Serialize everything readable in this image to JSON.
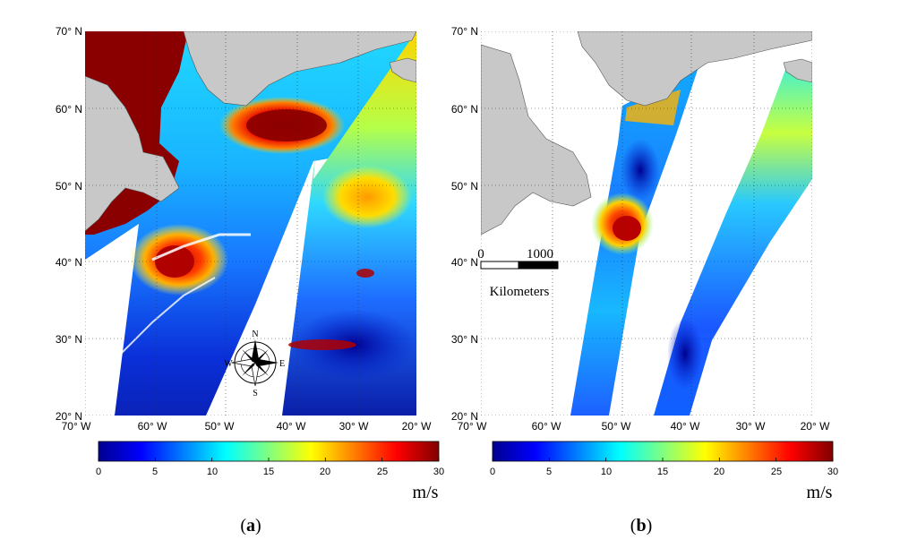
{
  "figure": {
    "panels": [
      {
        "id": "a",
        "label_open": "(",
        "label_letter": "a",
        "label_close": ")",
        "lat_ticks": [
          "70° N",
          "60° N",
          "50° N",
          "40° N",
          "30° N",
          "20° N"
        ],
        "lon_ticks": [
          "70° W",
          "60° W",
          "50° W",
          "40° W",
          "30° W",
          "20° W"
        ],
        "colorbar": {
          "min": 0,
          "max": 30,
          "ticks": [
            "0",
            "5",
            "10",
            "15",
            "20",
            "25",
            "30"
          ],
          "units": "m/s"
        },
        "compass": {
          "N": "N",
          "S": "S",
          "E": "E",
          "W": "W"
        }
      },
      {
        "id": "b",
        "label_open": "(",
        "label_letter": "b",
        "label_close": ")",
        "lat_ticks": [
          "70° N",
          "60° N",
          "50° N",
          "40° N",
          "30° N",
          "20° N"
        ],
        "lon_ticks": [
          "70° W",
          "60° W",
          "50° W",
          "40° W",
          "30° W",
          "20° W"
        ],
        "colorbar": {
          "min": 0,
          "max": 30,
          "ticks": [
            "0",
            "5",
            "10",
            "15",
            "20",
            "25",
            "30"
          ],
          "units": "m/s"
        },
        "scale_bar": {
          "start": "0",
          "end": "1000",
          "unit": "Kilometers"
        }
      }
    ],
    "colors": {
      "land": "#c8c8c8",
      "colormap": [
        "#00008f",
        "#0000ff",
        "#0080ff",
        "#00ffff",
        "#80ff80",
        "#ffff00",
        "#ff8000",
        "#ff0000",
        "#800000"
      ]
    }
  }
}
